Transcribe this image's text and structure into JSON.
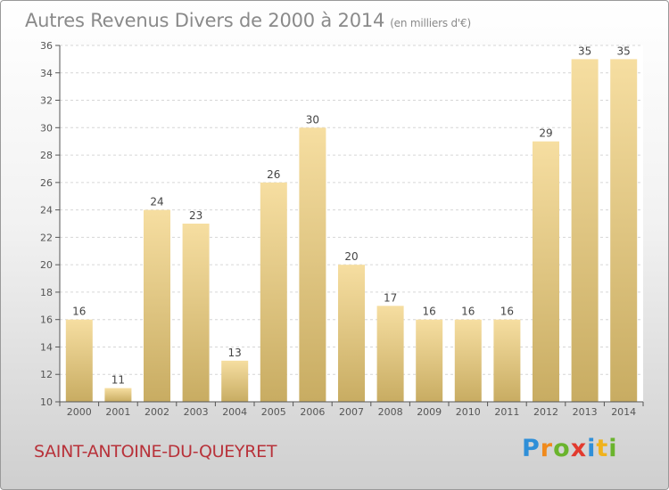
{
  "header": {
    "title": "Autres Revenus Divers de 2000 à 2014",
    "subtitle": "(en milliers d'€)"
  },
  "footer": {
    "town": "SAINT-ANTOINE-DU-QUEYRET",
    "logo_letters": [
      "P",
      "r",
      "o",
      "x",
      "i",
      "t",
      "i"
    ],
    "logo_colors": [
      "#2f8fd8",
      "#f08a1c",
      "#6ab42d",
      "#e23a2e",
      "#2f8fd8",
      "#f0b21c",
      "#6ab42d"
    ]
  },
  "chart_data": {
    "type": "bar",
    "categories": [
      "2000",
      "2001",
      "2002",
      "2003",
      "2004",
      "2005",
      "2006",
      "2007",
      "2008",
      "2009",
      "2010",
      "2011",
      "2012",
      "2013",
      "2014"
    ],
    "values": [
      16,
      11,
      24,
      23,
      13,
      26,
      30,
      20,
      17,
      16,
      16,
      16,
      29,
      35,
      35
    ],
    "data_labels": [
      "16",
      "11",
      "24",
      "23",
      "13",
      "26",
      "30",
      "20",
      "17",
      "16",
      "16",
      "16",
      "29",
      "35",
      "35"
    ],
    "title": "Autres Revenus Divers de 2000 à 2014",
    "subtitle": "(en milliers d'€)",
    "xlabel": "",
    "ylabel": "",
    "ylim": [
      10,
      36
    ],
    "yticks": [
      10,
      12,
      14,
      16,
      18,
      20,
      22,
      24,
      26,
      28,
      30,
      32,
      34,
      36
    ],
    "grid": true,
    "colors": {
      "bar_top": "#f6dea1",
      "bar_bottom": "#c8ac62",
      "grid": "#d6d6d6",
      "axis": "#555555"
    }
  }
}
